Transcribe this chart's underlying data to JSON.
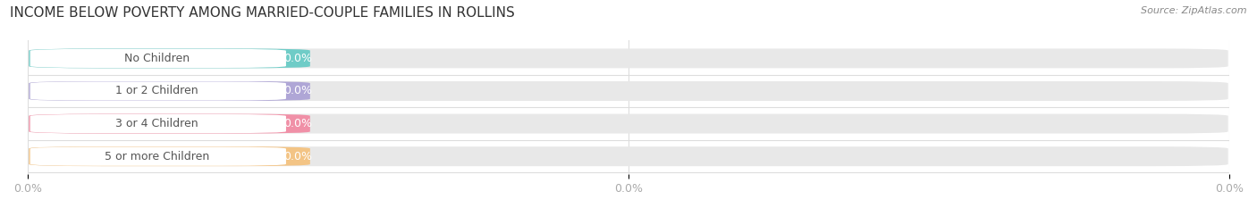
{
  "title": "INCOME BELOW POVERTY AMONG MARRIED-COUPLE FAMILIES IN ROLLINS",
  "source": "Source: ZipAtlas.com",
  "categories": [
    "No Children",
    "1 or 2 Children",
    "3 or 4 Children",
    "5 or more Children"
  ],
  "values": [
    0.0,
    0.0,
    0.0,
    0.0
  ],
  "bar_colors": [
    "#62c9c4",
    "#a99fd4",
    "#f287a0",
    "#f5c07a"
  ],
  "bg_color": "#ffffff",
  "bar_bg_color": "#e8e8e8",
  "inner_pill_color": "#ffffff",
  "label_color": "#555555",
  "value_color_on_bar": "#ffffff",
  "title_fontsize": 11,
  "source_fontsize": 8,
  "label_fontsize": 9,
  "value_fontsize": 9,
  "tick_fontsize": 9,
  "tick_color": "#aaaaaa",
  "grid_color": "#dddddd"
}
